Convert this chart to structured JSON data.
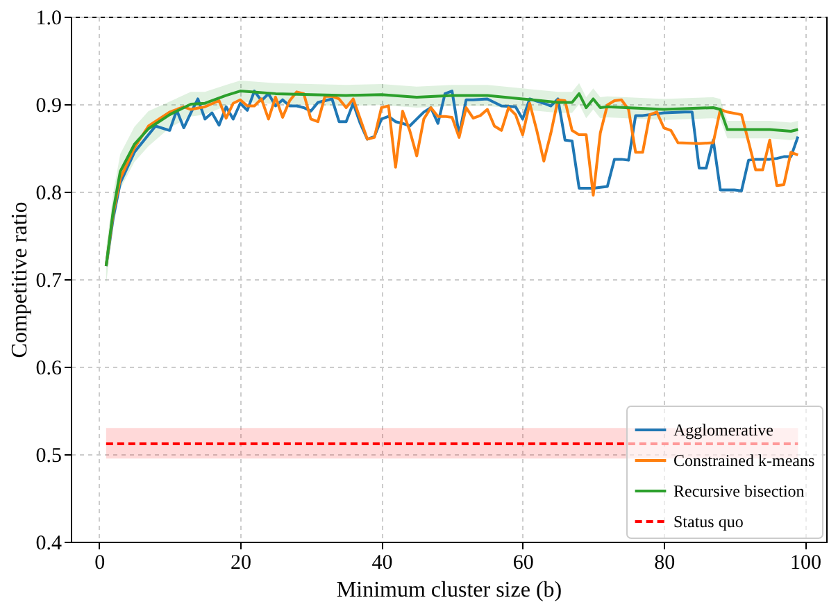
{
  "chart_data": {
    "type": "line",
    "xlabel": "Minimum cluster size (b)",
    "ylabel": "Competitive ratio",
    "xlim": [
      -4,
      103
    ],
    "xticks": [
      0,
      20,
      40,
      60,
      80,
      100
    ],
    "ylim": [
      0.4,
      1.0
    ],
    "yticks": [
      0.4,
      0.5,
      0.6,
      0.7,
      0.8,
      0.9,
      {
        "value": 1,
        "label": "1.0"
      }
    ],
    "grid": true,
    "legend": "bottom right",
    "marker": "none",
    "series": [
      {
        "name": "Agglomerative",
        "color": "#1f77b4",
        "x": [
          1,
          2,
          3,
          5,
          7,
          8,
          10,
          11,
          12,
          13,
          14,
          15,
          16,
          17,
          18,
          19,
          20,
          21,
          22,
          23,
          24,
          25,
          26,
          27,
          28,
          29,
          30,
          31,
          32,
          33,
          34,
          35,
          36,
          37,
          38,
          39,
          40,
          41,
          42,
          43,
          44,
          45,
          46,
          47,
          48,
          49,
          50,
          51,
          52,
          53,
          55,
          57,
          59,
          60,
          61,
          63,
          64,
          65,
          66,
          67,
          68,
          70,
          71,
          72,
          73,
          74,
          75,
          76,
          77,
          80,
          83,
          84,
          85,
          86,
          87,
          88,
          90,
          91,
          92,
          93,
          95,
          96,
          97,
          98,
          99
        ],
        "values": [
          0.715,
          0.77,
          0.81,
          0.845,
          0.865,
          0.875,
          0.87,
          0.893,
          0.873,
          0.89,
          0.906,
          0.883,
          0.89,
          0.876,
          0.897,
          0.883,
          0.901,
          0.893,
          0.915,
          0.904,
          0.912,
          0.898,
          0.905,
          0.898,
          0.898,
          0.896,
          0.892,
          0.902,
          0.904,
          0.906,
          0.88,
          0.88,
          0.901,
          0.878,
          0.86,
          0.863,
          0.883,
          0.886,
          0.88,
          0.878,
          0.875,
          0.883,
          0.891,
          0.896,
          0.878,
          0.912,
          0.915,
          0.865,
          0.905,
          0.905,
          0.906,
          0.898,
          0.897,
          0.883,
          0.906,
          0.901,
          0.898,
          0.906,
          0.859,
          0.858,
          0.804,
          0.804,
          0.805,
          0.806,
          0.837,
          0.837,
          0.836,
          0.887,
          0.887,
          0.89,
          0.891,
          0.891,
          0.827,
          0.827,
          0.859,
          0.802,
          0.802,
          0.801,
          0.836,
          0.837,
          0.837,
          0.838,
          0.84,
          0.84,
          0.863
        ]
      },
      {
        "name": "Constrained k-means",
        "color": "#ff7f0e",
        "x": [
          1,
          2,
          3,
          5,
          7,
          10,
          12,
          13,
          15,
          17,
          18,
          19,
          20,
          21,
          22,
          23,
          24,
          25,
          26,
          27,
          28,
          29,
          30,
          31,
          32,
          33,
          34,
          35,
          36,
          37,
          38,
          39,
          40,
          41,
          42,
          43,
          44,
          45,
          46,
          47,
          48,
          49,
          50,
          51,
          52,
          53,
          54,
          55,
          56,
          57,
          58,
          59,
          60,
          61,
          62,
          63,
          64,
          65,
          66,
          67,
          68,
          69,
          70,
          71,
          72,
          73,
          74,
          75,
          76,
          77,
          78,
          79,
          80,
          81,
          82,
          85,
          87,
          88,
          89,
          91,
          92,
          93,
          94,
          95,
          96,
          97,
          98,
          99
        ],
        "values": [
          0.715,
          0.775,
          0.815,
          0.85,
          0.875,
          0.891,
          0.897,
          0.894,
          0.897,
          0.904,
          0.884,
          0.901,
          0.905,
          0.898,
          0.898,
          0.906,
          0.883,
          0.908,
          0.885,
          0.904,
          0.914,
          0.912,
          0.883,
          0.88,
          0.909,
          0.909,
          0.906,
          0.896,
          0.906,
          0.883,
          0.86,
          0.862,
          0.896,
          0.898,
          0.828,
          0.892,
          0.87,
          0.841,
          0.883,
          0.896,
          0.886,
          0.886,
          0.885,
          0.862,
          0.896,
          0.884,
          0.887,
          0.894,
          0.875,
          0.87,
          0.896,
          0.888,
          0.865,
          0.901,
          0.87,
          0.835,
          0.867,
          0.905,
          0.904,
          0.87,
          0.865,
          0.865,
          0.796,
          0.867,
          0.899,
          0.904,
          0.905,
          0.894,
          0.845,
          0.845,
          0.888,
          0.891,
          0.873,
          0.87,
          0.856,
          0.855,
          0.856,
          0.894,
          0.891,
          0.888,
          0.857,
          0.825,
          0.825,
          0.859,
          0.807,
          0.808,
          0.845,
          0.842
        ]
      },
      {
        "name": "Recursive bisection",
        "color": "#2ca02c",
        "x": [
          1,
          2,
          3,
          5,
          7,
          10,
          13,
          15,
          18,
          20,
          25,
          30,
          35,
          40,
          45,
          50,
          55,
          60,
          65,
          67,
          68,
          69,
          70,
          71,
          72,
          80,
          87,
          88,
          89,
          95,
          98,
          99
        ],
        "values": [
          0.715,
          0.778,
          0.823,
          0.854,
          0.872,
          0.888,
          0.9,
          0.901,
          0.91,
          0.915,
          0.912,
          0.911,
          0.91,
          0.911,
          0.908,
          0.91,
          0.91,
          0.906,
          0.902,
          0.902,
          0.912,
          0.896,
          0.906,
          0.896,
          0.897,
          0.894,
          0.896,
          0.894,
          0.871,
          0.871,
          0.869,
          0.871
        ],
        "lower": [
          0.695,
          0.758,
          0.803,
          0.834,
          0.852,
          0.873,
          0.886,
          0.888,
          0.898,
          0.903,
          0.9,
          0.899,
          0.898,
          0.899,
          0.896,
          0.898,
          0.898,
          0.894,
          0.89,
          0.89,
          0.9,
          0.884,
          0.894,
          0.884,
          0.885,
          0.882,
          0.884,
          0.882,
          0.861,
          0.861,
          0.859,
          0.861
        ],
        "upper": [
          0.735,
          0.798,
          0.843,
          0.874,
          0.892,
          0.903,
          0.914,
          0.914,
          0.922,
          0.927,
          0.924,
          0.923,
          0.922,
          0.923,
          0.92,
          0.922,
          0.922,
          0.918,
          0.914,
          0.914,
          0.924,
          0.908,
          0.918,
          0.908,
          0.909,
          0.906,
          0.908,
          0.906,
          0.881,
          0.881,
          0.879,
          0.881
        ]
      },
      {
        "name": "Status quo",
        "color": "#ff0000",
        "line_style": "dashed",
        "x": [
          1,
          99
        ],
        "values": [
          0.512,
          0.512
        ],
        "lower": [
          0.495,
          0.495
        ],
        "upper": [
          0.53,
          0.53
        ]
      }
    ]
  }
}
